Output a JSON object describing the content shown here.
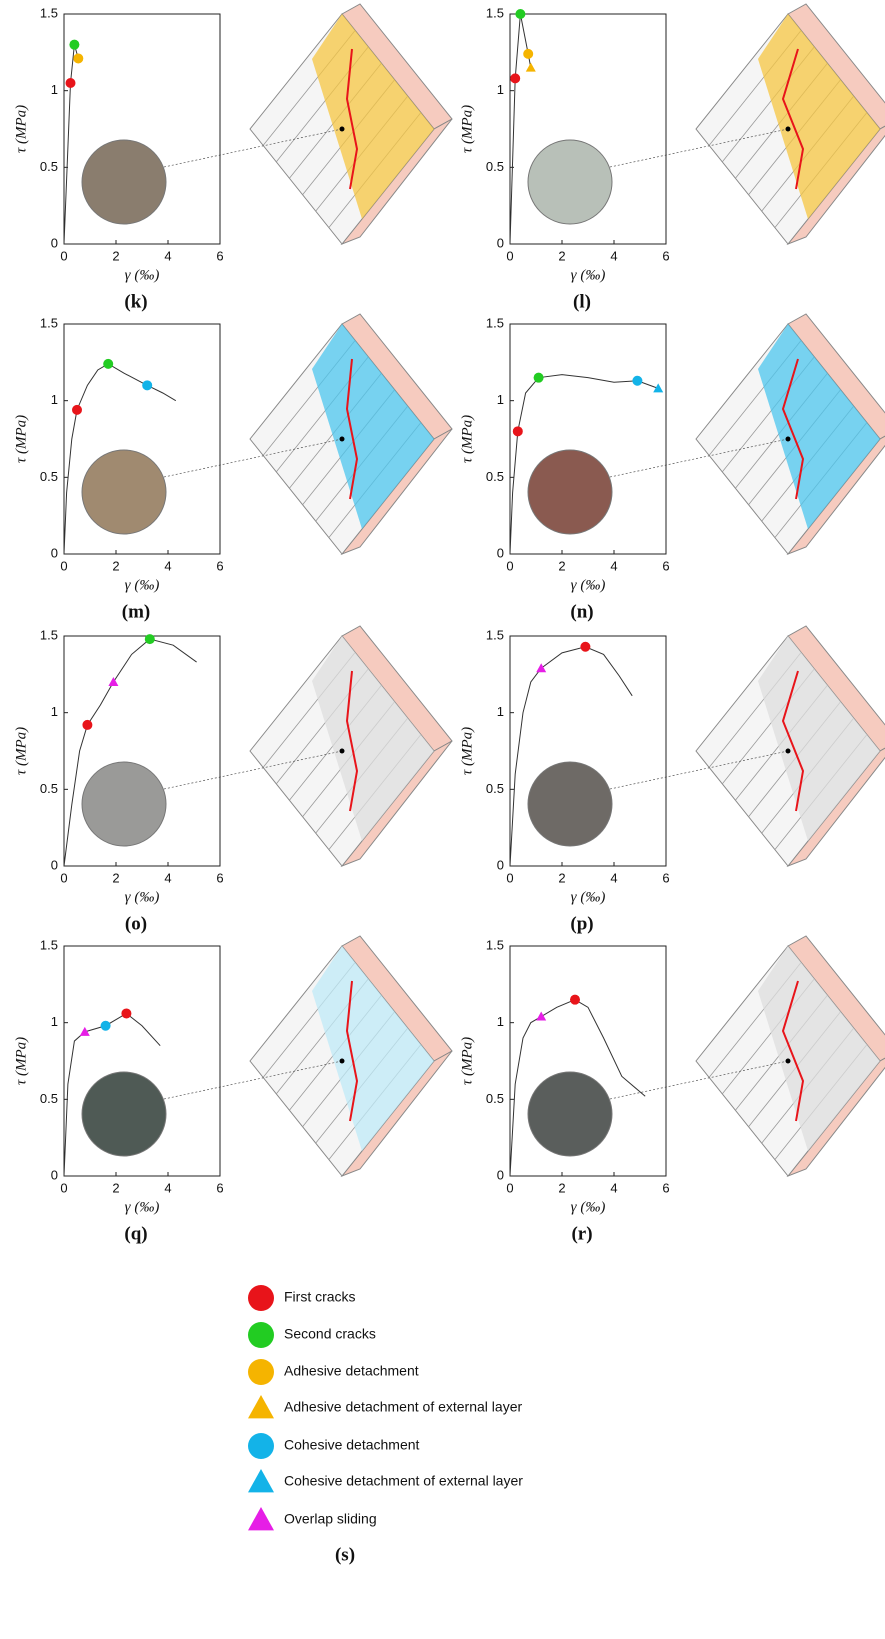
{
  "chart_data": [
    {
      "type": "line",
      "label": "(k)",
      "x_label": "γ (‰)",
      "y_label": "τ (MPa)",
      "xlim": [
        0,
        6
      ],
      "ylim": [
        0,
        1.5
      ],
      "xticks": [
        0,
        2,
        4,
        6
      ],
      "yticks": [
        0,
        0.5,
        1,
        1.5
      ],
      "x": [
        0,
        0.25,
        0.4,
        0.55
      ],
      "series": [
        {
          "color": "#333333",
          "values": [
            0,
            1.05,
            1.3,
            1.21
          ]
        }
      ],
      "markers": [
        {
          "x": 0.25,
          "y": 1.05,
          "color": "#e8141a",
          "shape": "circle"
        },
        {
          "x": 0.4,
          "y": 1.3,
          "color": "#22cc22",
          "shape": "circle"
        },
        {
          "x": 0.55,
          "y": 1.21,
          "color": "#f5b400",
          "shape": "circle"
        }
      ]
    },
    {
      "type": "line",
      "label": "(l)",
      "x_label": "γ (‰)",
      "y_label": "τ (MPa)",
      "xlim": [
        0,
        6
      ],
      "ylim": [
        0,
        1.5
      ],
      "xticks": [
        0,
        2,
        4,
        6
      ],
      "yticks": [
        0,
        0.5,
        1,
        1.5
      ],
      "x": [
        0,
        0.2,
        0.4,
        0.7,
        0.8
      ],
      "series": [
        {
          "color": "#333333",
          "values": [
            0,
            1.08,
            1.5,
            1.24,
            1.15
          ]
        }
      ],
      "markers": [
        {
          "x": 0.2,
          "y": 1.08,
          "color": "#e8141a",
          "shape": "circle"
        },
        {
          "x": 0.4,
          "y": 1.5,
          "color": "#22cc22",
          "shape": "circle"
        },
        {
          "x": 0.7,
          "y": 1.24,
          "color": "#f5b400",
          "shape": "circle"
        },
        {
          "x": 0.8,
          "y": 1.15,
          "color": "#f5b400",
          "shape": "triangle"
        }
      ]
    },
    {
      "type": "line",
      "label": "(m)",
      "x_label": "γ (‰)",
      "y_label": "τ (MPa)",
      "xlim": [
        0,
        6
      ],
      "ylim": [
        0,
        1.5
      ],
      "xticks": [
        0,
        2,
        4,
        6
      ],
      "yticks": [
        0,
        0.5,
        1,
        1.5
      ],
      "x": [
        0,
        0.1,
        0.3,
        0.5,
        0.9,
        1.3,
        1.7,
        2.3,
        3.2,
        3.8,
        4.3
      ],
      "series": [
        {
          "color": "#333333",
          "values": [
            0,
            0.4,
            0.75,
            0.94,
            1.1,
            1.2,
            1.24,
            1.18,
            1.1,
            1.05,
            1.0
          ]
        }
      ],
      "markers": [
        {
          "x": 0.5,
          "y": 0.94,
          "color": "#e8141a",
          "shape": "circle"
        },
        {
          "x": 1.7,
          "y": 1.24,
          "color": "#22cc22",
          "shape": "circle"
        },
        {
          "x": 3.2,
          "y": 1.1,
          "color": "#13b3e8",
          "shape": "circle"
        }
      ]
    },
    {
      "type": "line",
      "label": "(n)",
      "x_label": "γ (‰)",
      "y_label": "τ (MPa)",
      "xlim": [
        0,
        6
      ],
      "ylim": [
        0,
        1.5
      ],
      "xticks": [
        0,
        2,
        4,
        6
      ],
      "yticks": [
        0,
        0.5,
        1,
        1.5
      ],
      "x": [
        0,
        0.1,
        0.3,
        0.6,
        1.1,
        2,
        3,
        4,
        4.9,
        5.7
      ],
      "series": [
        {
          "color": "#333333",
          "values": [
            0,
            0.4,
            0.8,
            1.05,
            1.15,
            1.17,
            1.15,
            1.12,
            1.13,
            1.08
          ]
        }
      ],
      "markers": [
        {
          "x": 0.3,
          "y": 0.8,
          "color": "#e8141a",
          "shape": "circle"
        },
        {
          "x": 1.1,
          "y": 1.15,
          "color": "#22cc22",
          "shape": "circle"
        },
        {
          "x": 4.9,
          "y": 1.13,
          "color": "#13b3e8",
          "shape": "circle"
        },
        {
          "x": 5.7,
          "y": 1.08,
          "color": "#13b3e8",
          "shape": "triangle"
        }
      ]
    },
    {
      "type": "line",
      "label": "(o)",
      "x_label": "γ (‰)",
      "y_label": "τ (MPa)",
      "xlim": [
        0,
        6
      ],
      "ylim": [
        0,
        1.5
      ],
      "xticks": [
        0,
        2,
        4,
        6
      ],
      "yticks": [
        0,
        0.5,
        1,
        1.5
      ],
      "x": [
        0,
        0.3,
        0.6,
        0.9,
        1.4,
        1.9,
        2.6,
        3.3,
        4.2,
        5.1
      ],
      "series": [
        {
          "color": "#333333",
          "values": [
            0,
            0.4,
            0.75,
            0.92,
            1.05,
            1.2,
            1.38,
            1.48,
            1.44,
            1.33
          ]
        }
      ],
      "markers": [
        {
          "x": 0.9,
          "y": 0.92,
          "color": "#e8141a",
          "shape": "circle"
        },
        {
          "x": 1.9,
          "y": 1.2,
          "color": "#e61ee6",
          "shape": "triangle"
        },
        {
          "x": 3.3,
          "y": 1.48,
          "color": "#22cc22",
          "shape": "circle"
        }
      ]
    },
    {
      "type": "line",
      "label": "(p)",
      "x_label": "γ (‰)",
      "y_label": "τ (MPa)",
      "xlim": [
        0,
        6
      ],
      "ylim": [
        0,
        1.5
      ],
      "xticks": [
        0,
        2,
        4,
        6
      ],
      "yticks": [
        0,
        0.5,
        1,
        1.5
      ],
      "x": [
        0,
        0.2,
        0.5,
        0.8,
        1.2,
        2,
        2.9,
        3.6,
        4.2,
        4.7
      ],
      "series": [
        {
          "color": "#333333",
          "values": [
            0,
            0.6,
            1.0,
            1.2,
            1.29,
            1.39,
            1.43,
            1.38,
            1.24,
            1.11
          ]
        }
      ],
      "markers": [
        {
          "x": 1.2,
          "y": 1.29,
          "color": "#e61ee6",
          "shape": "triangle"
        },
        {
          "x": 2.9,
          "y": 1.43,
          "color": "#e8141a",
          "shape": "circle"
        }
      ]
    },
    {
      "type": "line",
      "label": "(q)",
      "x_label": "γ (‰)",
      "y_label": "τ (MPa)",
      "xlim": [
        0,
        6
      ],
      "ylim": [
        0,
        1.5
      ],
      "xticks": [
        0,
        2,
        4,
        6
      ],
      "yticks": [
        0,
        0.5,
        1,
        1.5
      ],
      "x": [
        0,
        0.15,
        0.4,
        0.8,
        1.6,
        2.4,
        3,
        3.7
      ],
      "series": [
        {
          "color": "#333333",
          "values": [
            0,
            0.6,
            0.88,
            0.94,
            0.98,
            1.06,
            0.98,
            0.85
          ]
        }
      ],
      "markers": [
        {
          "x": 0.8,
          "y": 0.94,
          "color": "#e61ee6",
          "shape": "triangle"
        },
        {
          "x": 1.6,
          "y": 0.98,
          "color": "#13b3e8",
          "shape": "circle"
        },
        {
          "x": 2.4,
          "y": 1.06,
          "color": "#e8141a",
          "shape": "circle"
        }
      ]
    },
    {
      "type": "line",
      "label": "(r)",
      "x_label": "γ (‰)",
      "y_label": "τ (MPa)",
      "xlim": [
        0,
        6
      ],
      "ylim": [
        0,
        1.5
      ],
      "xticks": [
        0,
        2,
        4,
        6
      ],
      "yticks": [
        0,
        0.5,
        1,
        1.5
      ],
      "x": [
        0,
        0.2,
        0.5,
        0.8,
        1.2,
        1.8,
        2.5,
        3,
        3.6,
        4.3,
        5.2
      ],
      "series": [
        {
          "color": "#333333",
          "values": [
            0,
            0.6,
            0.9,
            1.0,
            1.04,
            1.1,
            1.15,
            1.1,
            0.9,
            0.65,
            0.52
          ]
        }
      ],
      "markers": [
        {
          "x": 1.2,
          "y": 1.04,
          "color": "#e61ee6",
          "shape": "triangle"
        },
        {
          "x": 2.5,
          "y": 1.15,
          "color": "#e8141a",
          "shape": "circle"
        }
      ]
    }
  ],
  "legend": {
    "label": "(s)",
    "items": [
      {
        "label": "First cracks",
        "color": "#e8141a",
        "shape": "circle"
      },
      {
        "label": "Second cracks",
        "color": "#22cc22",
        "shape": "circle"
      },
      {
        "label": "Adhesive detachment",
        "color": "#f5b400",
        "shape": "circle"
      },
      {
        "label": "Adhesive detachment of external layer",
        "color": "#f5b400",
        "shape": "triangle"
      },
      {
        "label": "Cohesive detachment",
        "color": "#13b3e8",
        "shape": "circle"
      },
      {
        "label": "Cohesive detachment of external layer",
        "color": "#13b3e8",
        "shape": "triangle"
      },
      {
        "label": "Overlap sliding",
        "color": "#e61ee6",
        "shape": "triangle"
      }
    ]
  }
}
